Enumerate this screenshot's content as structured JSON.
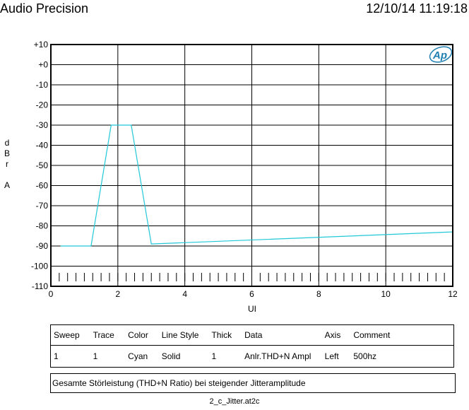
{
  "header": {
    "app_name": "Audio Precision",
    "timestamp": "12/10/14 11:19:18"
  },
  "logo_text": "Ap",
  "chart_data": {
    "type": "line",
    "title": "",
    "xlabel": "UI",
    "ylabel": [
      "d",
      "B",
      "r",
      "",
      "A"
    ],
    "xlim": [
      0,
      12
    ],
    "ylim": [
      -110,
      10
    ],
    "x_ticks": [
      "0",
      "2",
      "4",
      "6",
      "8",
      "10",
      "12"
    ],
    "y_ticks": [
      "+10",
      "+0",
      "-10",
      "-20",
      "-30",
      "-40",
      "-50",
      "-60",
      "-70",
      "-80",
      "-90",
      "-100",
      "-110"
    ],
    "grid": true,
    "series": [
      {
        "name": "Anlr.THD+N Ampl",
        "color": "#22c8d8",
        "x": [
          0.3,
          1.2,
          1.8,
          2.4,
          3.0,
          12.0
        ],
        "y": [
          -90,
          -90,
          -30,
          -30,
          -89,
          -83
        ]
      }
    ]
  },
  "legend_table": {
    "headers": [
      "Sweep",
      "Trace",
      "Color",
      "Line Style",
      "Thick",
      "Data",
      "Axis",
      "Comment"
    ],
    "rows": [
      [
        "1",
        "1",
        "Cyan",
        "Solid",
        "1",
        "Anlr.THD+N Ampl",
        "Left",
        "500hz"
      ]
    ]
  },
  "note": "Gesamte Störleistung (THD+N Ratio) bei steigender Jitteramplitude",
  "filename": "2_c_Jitter.at2c"
}
